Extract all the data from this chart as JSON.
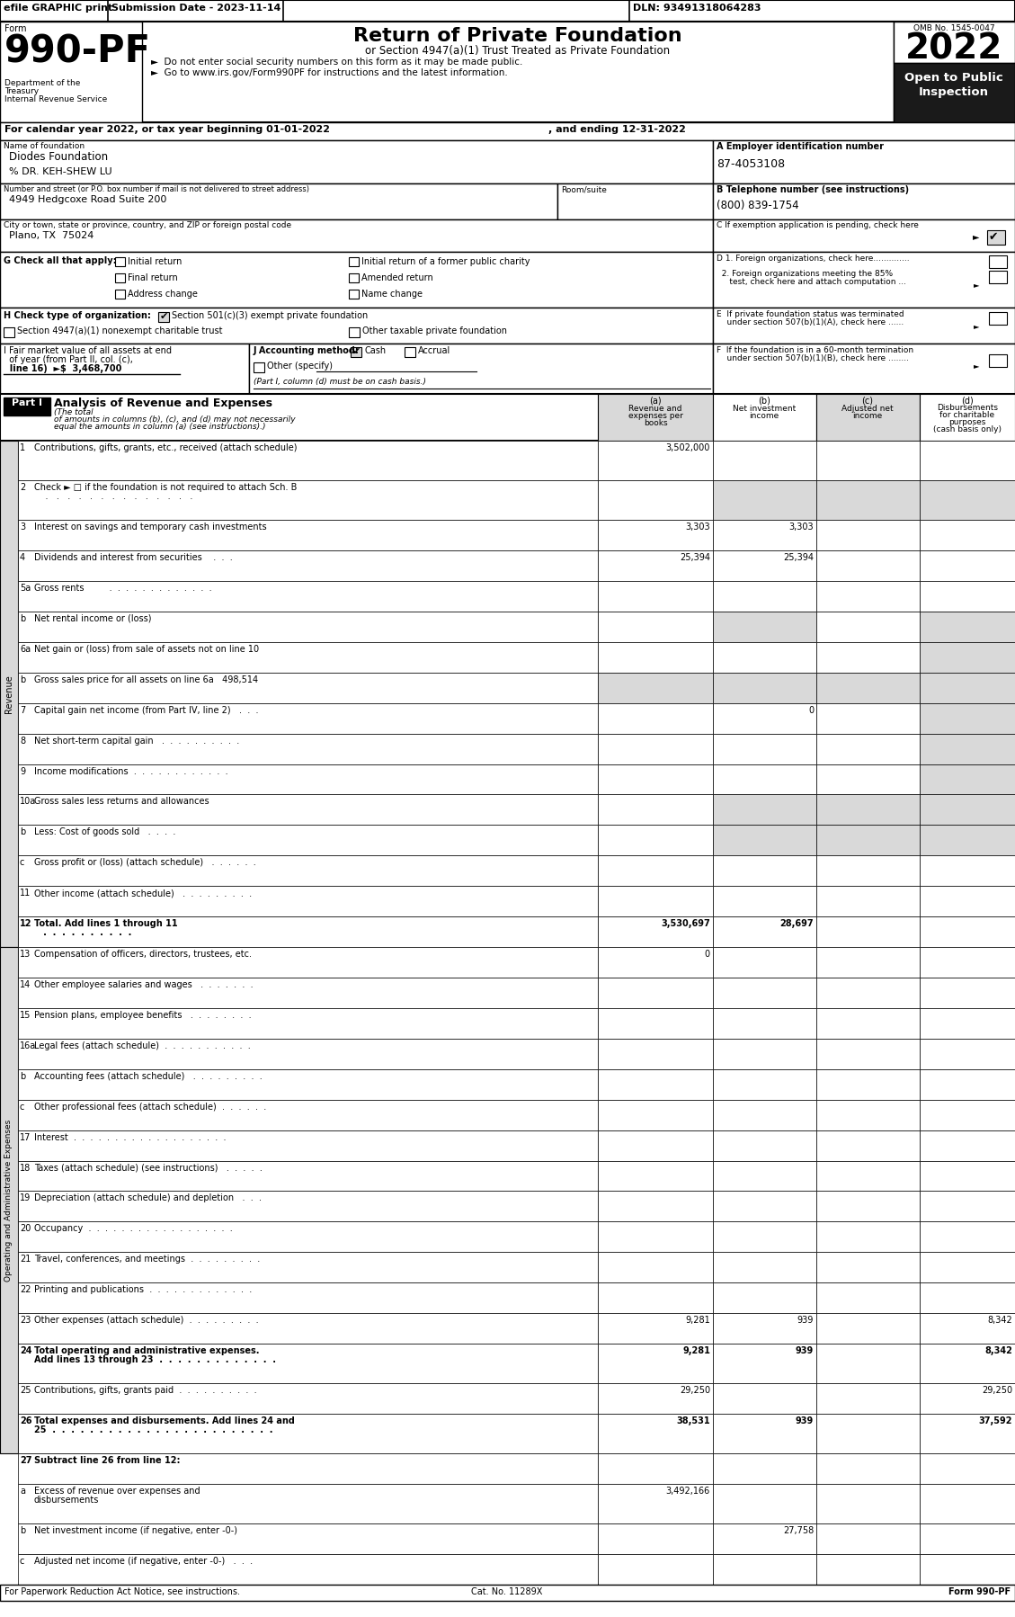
{
  "bg_color": "#ffffff",
  "top_bar_efile": "efile GRAPHIC print",
  "top_bar_submission": "Submission Date - 2023-11-14",
  "top_bar_dln": "DLN: 93491318064283",
  "form_number": "990-PF",
  "dept1": "Department of the",
  "dept2": "Treasury",
  "dept3": "Internal Revenue Service",
  "title": "Return of Private Foundation",
  "subtitle": "or Section 4947(a)(1) Trust Treated as Private Foundation",
  "bullet1": "►  Do not enter social security numbers on this form as it may be made public.",
  "bullet2": "►  Go to www.irs.gov/Form990PF for instructions and the latest information.",
  "omb": "OMB No. 1545-0047",
  "year_box": "2022",
  "open_text1": "Open to Public",
  "open_text2": "Inspection",
  "cal_year": "For calendar year 2022, or tax year beginning 01-01-2022",
  "cal_year2": ", and ending 12-31-2022",
  "name_label": "Name of foundation",
  "name_value": "Diodes Foundation",
  "care_of": "% DR. KEH-SHEW LU",
  "addr_label": "Number and street (or P.O. box number if mail is not delivered to street address)",
  "addr_value": "4949 Hedgcoxe Road Suite 200",
  "room_label": "Room/suite",
  "city_label": "City or town, state or province, country, and ZIP or foreign postal code",
  "city_value": "Plano, TX  75024",
  "ein_label": "A Employer identification number",
  "ein_value": "87-4053108",
  "phone_label": "B Telephone number (see instructions)",
  "phone_value": "(800) 839-1754",
  "c_label": "C If exemption application is pending, check here",
  "d1_label": "D 1. Foreign organizations, check here..............",
  "d2a_label": "  2. Foreign organizations meeting the 85%",
  "d2b_label": "     test, check here and attach computation ...",
  "e1_label": "E  If private foundation status was terminated",
  "e2_label": "    under section 507(b)(1)(A), check here ......",
  "f1_label": "F  If the foundation is in a 60-month termination",
  "f2_label": "    under section 507(b)(1)(B), check here ........",
  "g_label": "G Check all that apply:",
  "h_label": "H Check type of organization:",
  "h1": "Section 501(c)(3) exempt private foundation",
  "h2": "Section 4947(a)(1) nonexempt charitable trust",
  "h3": "Other taxable private foundation",
  "i_line1": "I Fair market value of all assets at end",
  "i_line2": "  of year (from Part II, col. (c),",
  "i_line3": "  line 16)  ►$  3,468,700",
  "j_label": "J Accounting method:",
  "j_cash": "Cash",
  "j_accrual": "Accrual",
  "j_other": "Other (specify)",
  "j_note": "(Part I, column (d) must be on cash basis.)",
  "part1_label": "Part I",
  "part1_title": "Analysis of Revenue and Expenses",
  "part1_sub1": "(The total",
  "part1_sub2": "of amounts in columns (b), (c), and (d) may not necessarily",
  "part1_sub3": "equal the amounts in column (a) (see instructions).)",
  "col_a_label": "(a)",
  "col_a1": "Revenue and",
  "col_a2": "expenses per",
  "col_a3": "books",
  "col_b_label": "(b)",
  "col_b1": "Net investment",
  "col_b2": "income",
  "col_c_label": "(c)",
  "col_c1": "Adjusted net",
  "col_c2": "income",
  "col_d_label": "(d)",
  "col_d1": "Disbursements",
  "col_d2": "for charitable",
  "col_d3": "purposes",
  "col_d4": "(cash basis only)",
  "revenue_label": "Revenue",
  "expenses_label": "Operating and Administrative Expenses",
  "rows": [
    {
      "num": "1",
      "label": "Contributions, gifts, grants, etc., received (attach schedule)",
      "label2": "",
      "a": "3,502,000",
      "b": "",
      "c": "",
      "d": "",
      "sh": [
        0,
        0,
        0,
        0
      ],
      "bold": false,
      "twolines": true
    },
    {
      "num": "2",
      "label": "Check ► □ if the foundation is not required to attach Sch. B",
      "label2": "    .   .   .   .   .   .   .   .   .   .   .   .   .   .",
      "a": "",
      "b": "",
      "c": "",
      "d": "",
      "sh": [
        0,
        1,
        1,
        1
      ],
      "bold": false,
      "twolines": true
    },
    {
      "num": "3",
      "label": "Interest on savings and temporary cash investments",
      "label2": "",
      "a": "3,303",
      "b": "3,303",
      "c": "",
      "d": "",
      "sh": [
        0,
        0,
        0,
        0
      ],
      "bold": false,
      "twolines": false
    },
    {
      "num": "4",
      "label": "Dividends and interest from securities    .  .  .",
      "label2": "",
      "a": "25,394",
      "b": "25,394",
      "c": "",
      "d": "",
      "sh": [
        0,
        0,
        0,
        0
      ],
      "bold": false,
      "twolines": false
    },
    {
      "num": "5a",
      "label": "Gross rents         .  .  .  .  .  .  .  .  .  .  .  .  .",
      "label2": "",
      "a": "",
      "b": "",
      "c": "",
      "d": "",
      "sh": [
        0,
        0,
        0,
        0
      ],
      "bold": false,
      "twolines": false
    },
    {
      "num": "b",
      "label": "Net rental income or (loss)",
      "label2": "",
      "a": "",
      "b": "",
      "c": "",
      "d": "",
      "sh": [
        0,
        1,
        0,
        1
      ],
      "bold": false,
      "twolines": false
    },
    {
      "num": "6a",
      "label": "Net gain or (loss) from sale of assets not on line 10",
      "label2": "",
      "a": "",
      "b": "",
      "c": "",
      "d": "",
      "sh": [
        0,
        0,
        0,
        1
      ],
      "bold": false,
      "twolines": false
    },
    {
      "num": "b",
      "label": "Gross sales price for all assets on line 6a   498,514",
      "label2": "",
      "a": "",
      "b": "",
      "c": "",
      "d": "",
      "sh": [
        1,
        1,
        1,
        1
      ],
      "bold": false,
      "twolines": false
    },
    {
      "num": "7",
      "label": "Capital gain net income (from Part IV, line 2)   .  .  .",
      "label2": "",
      "a": "",
      "b": "0",
      "c": "",
      "d": "",
      "sh": [
        0,
        0,
        0,
        1
      ],
      "bold": false,
      "twolines": false
    },
    {
      "num": "8",
      "label": "Net short-term capital gain   .  .  .  .  .  .  .  .  .  .",
      "label2": "",
      "a": "",
      "b": "",
      "c": "",
      "d": "",
      "sh": [
        0,
        0,
        0,
        1
      ],
      "bold": false,
      "twolines": false
    },
    {
      "num": "9",
      "label": "Income modifications  .  .  .  .  .  .  .  .  .  .  .  .",
      "label2": "",
      "a": "",
      "b": "",
      "c": "",
      "d": "",
      "sh": [
        0,
        0,
        0,
        1
      ],
      "bold": false,
      "twolines": false
    },
    {
      "num": "10a",
      "label": "Gross sales less returns and allowances",
      "label2": "",
      "a": "",
      "b": "",
      "c": "",
      "d": "",
      "sh": [
        0,
        1,
        1,
        1
      ],
      "bold": false,
      "twolines": false
    },
    {
      "num": "b",
      "label": "Less: Cost of goods sold   .  .  .  .",
      "label2": "",
      "a": "",
      "b": "",
      "c": "",
      "d": "",
      "sh": [
        0,
        1,
        1,
        1
      ],
      "bold": false,
      "twolines": false
    },
    {
      "num": "c",
      "label": "Gross profit or (loss) (attach schedule)   .  .  .  .  .  .",
      "label2": "",
      "a": "",
      "b": "",
      "c": "",
      "d": "",
      "sh": [
        0,
        0,
        0,
        0
      ],
      "bold": false,
      "twolines": false
    },
    {
      "num": "11",
      "label": "Other income (attach schedule)   .  .  .  .  .  .  .  .  .",
      "label2": "",
      "a": "",
      "b": "",
      "c": "",
      "d": "",
      "sh": [
        0,
        0,
        0,
        0
      ],
      "bold": false,
      "twolines": false
    },
    {
      "num": "12",
      "label": "Total. Add lines 1 through 11",
      "label2": "   .  .  .  .  .  .  .  .  .  .",
      "a": "3,530,697",
      "b": "28,697",
      "c": "",
      "d": "",
      "sh": [
        0,
        0,
        0,
        0
      ],
      "bold": true,
      "twolines": false
    },
    {
      "num": "13",
      "label": "Compensation of officers, directors, trustees, etc.",
      "label2": "",
      "a": "0",
      "b": "",
      "c": "",
      "d": "",
      "sh": [
        0,
        0,
        0,
        0
      ],
      "bold": false,
      "twolines": false
    },
    {
      "num": "14",
      "label": "Other employee salaries and wages   .  .  .  .  .  .  .",
      "label2": "",
      "a": "",
      "b": "",
      "c": "",
      "d": "",
      "sh": [
        0,
        0,
        0,
        0
      ],
      "bold": false,
      "twolines": false
    },
    {
      "num": "15",
      "label": "Pension plans, employee benefits   .  .  .  .  .  .  .  .",
      "label2": "",
      "a": "",
      "b": "",
      "c": "",
      "d": "",
      "sh": [
        0,
        0,
        0,
        0
      ],
      "bold": false,
      "twolines": false
    },
    {
      "num": "16a",
      "label": "Legal fees (attach schedule)  .  .  .  .  .  .  .  .  .  .  .",
      "label2": "",
      "a": "",
      "b": "",
      "c": "",
      "d": "",
      "sh": [
        0,
        0,
        0,
        0
      ],
      "bold": false,
      "twolines": false
    },
    {
      "num": "b",
      "label": "Accounting fees (attach schedule)   .  .  .  .  .  .  .  .  .",
      "label2": "",
      "a": "",
      "b": "",
      "c": "",
      "d": "",
      "sh": [
        0,
        0,
        0,
        0
      ],
      "bold": false,
      "twolines": false
    },
    {
      "num": "c",
      "label": "Other professional fees (attach schedule)  .  .  .  .  .  .",
      "label2": "",
      "a": "",
      "b": "",
      "c": "",
      "d": "",
      "sh": [
        0,
        0,
        0,
        0
      ],
      "bold": false,
      "twolines": false
    },
    {
      "num": "17",
      "label": "Interest  .  .  .  .  .  .  .  .  .  .  .  .  .  .  .  .  .  .  .",
      "label2": "",
      "a": "",
      "b": "",
      "c": "",
      "d": "",
      "sh": [
        0,
        0,
        0,
        0
      ],
      "bold": false,
      "twolines": false
    },
    {
      "num": "18",
      "label": "Taxes (attach schedule) (see instructions)   .  .  .  .  .",
      "label2": "",
      "a": "",
      "b": "",
      "c": "",
      "d": "",
      "sh": [
        0,
        0,
        0,
        0
      ],
      "bold": false,
      "twolines": false
    },
    {
      "num": "19",
      "label": "Depreciation (attach schedule) and depletion   .  .  .",
      "label2": "",
      "a": "",
      "b": "",
      "c": "",
      "d": "",
      "sh": [
        0,
        0,
        0,
        0
      ],
      "bold": false,
      "twolines": false
    },
    {
      "num": "20",
      "label": "Occupancy  .  .  .  .  .  .  .  .  .  .  .  .  .  .  .  .  .  .",
      "label2": "",
      "a": "",
      "b": "",
      "c": "",
      "d": "",
      "sh": [
        0,
        0,
        0,
        0
      ],
      "bold": false,
      "twolines": false
    },
    {
      "num": "21",
      "label": "Travel, conferences, and meetings  .  .  .  .  .  .  .  .  .",
      "label2": "",
      "a": "",
      "b": "",
      "c": "",
      "d": "",
      "sh": [
        0,
        0,
        0,
        0
      ],
      "bold": false,
      "twolines": false
    },
    {
      "num": "22",
      "label": "Printing and publications  .  .  .  .  .  .  .  .  .  .  .  .  .",
      "label2": "",
      "a": "",
      "b": "",
      "c": "",
      "d": "",
      "sh": [
        0,
        0,
        0,
        0
      ],
      "bold": false,
      "twolines": false
    },
    {
      "num": "23",
      "label": "Other expenses (attach schedule)  .  .  .  .  .  .  .  .  .",
      "label2": "",
      "a": "9,281",
      "b": "939",
      "c": "",
      "d": "8,342",
      "sh": [
        0,
        0,
        0,
        0
      ],
      "bold": false,
      "twolines": false
    },
    {
      "num": "24",
      "label": "Total operating and administrative expenses.",
      "label2": "Add lines 13 through 23  .  .  .  .  .  .  .  .  .  .  .  .  .",
      "a": "9,281",
      "b": "939",
      "c": "",
      "d": "8,342",
      "sh": [
        0,
        0,
        0,
        0
      ],
      "bold": true,
      "twolines": true
    },
    {
      "num": "25",
      "label": "Contributions, gifts, grants paid  .  .  .  .  .  .  .  .  .  .",
      "label2": "",
      "a": "29,250",
      "b": "",
      "c": "",
      "d": "29,250",
      "sh": [
        0,
        0,
        0,
        0
      ],
      "bold": false,
      "twolines": false
    },
    {
      "num": "26",
      "label": "Total expenses and disbursements. Add lines 24 and",
      "label2": "25  .  .  .  .  .  .  .  .  .  .  .  .  .  .  .  .  .  .  .  .  .  .  .  .",
      "a": "38,531",
      "b": "939",
      "c": "",
      "d": "37,592",
      "sh": [
        0,
        0,
        0,
        0
      ],
      "bold": true,
      "twolines": true
    },
    {
      "num": "27",
      "label": "Subtract line 26 from line 12:",
      "label2": "",
      "a": "",
      "b": "",
      "c": "",
      "d": "",
      "sh": [
        0,
        0,
        0,
        0
      ],
      "bold": true,
      "twolines": false
    },
    {
      "num": "a",
      "label": "Excess of revenue over expenses and",
      "label2": "disbursements",
      "a": "3,492,166",
      "b": "",
      "c": "",
      "d": "",
      "sh": [
        0,
        0,
        0,
        0
      ],
      "bold": false,
      "twolines": true
    },
    {
      "num": "b",
      "label": "Net investment income (if negative, enter -0-)",
      "label2": "",
      "a": "",
      "b": "27,758",
      "c": "",
      "d": "",
      "sh": [
        0,
        0,
        0,
        0
      ],
      "bold": false,
      "twolines": false
    },
    {
      "num": "c",
      "label": "Adjusted net income (if negative, enter -0-)   .  .  .",
      "label2": "",
      "a": "",
      "b": "",
      "c": "",
      "d": "",
      "sh": [
        0,
        0,
        0,
        0
      ],
      "bold": false,
      "twolines": false
    }
  ],
  "footer_left": "For Paperwork Reduction Act Notice, see instructions.",
  "footer_cat": "Cat. No. 11289X",
  "footer_right": "Form 990-PF"
}
